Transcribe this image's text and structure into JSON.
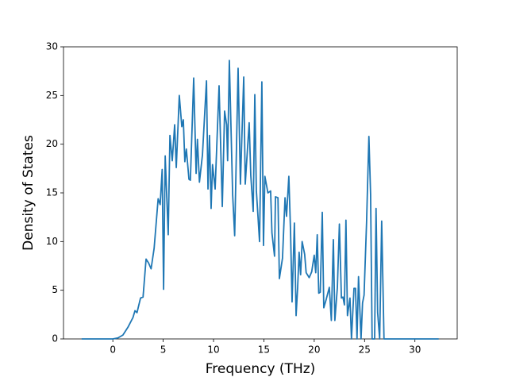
{
  "chart_data": {
    "type": "line",
    "x_label": "Frequency (THz)",
    "y_label": "Density of States",
    "color": "#1f77b4",
    "x": [
      -3.1,
      0,
      0.5,
      1,
      1.5,
      2,
      2.2,
      2.4,
      2.75,
      3,
      3.3,
      3.55,
      3.8,
      4.1,
      4.5,
      4.7,
      4.9,
      5.04,
      5.2,
      5.5,
      5.67,
      5.9,
      6.14,
      6.3,
      6.6,
      6.85,
      7.0,
      7.15,
      7.3,
      7.56,
      7.7,
      8.03,
      8.27,
      8.4,
      8.6,
      8.9,
      9.3,
      9.45,
      9.6,
      9.76,
      9.9,
      10.16,
      10.55,
      10.87,
      11.1,
      11.3,
      11.4,
      11.57,
      11.9,
      12.1,
      12.44,
      12.67,
      13.0,
      13.15,
      13.54,
      13.7,
      13.94,
      14.1,
      14.25,
      14.57,
      14.8,
      14.96,
      15.1,
      15.4,
      15.67,
      15.8,
      16.06,
      16.15,
      16.4,
      16.54,
      16.85,
      17.1,
      17.25,
      17.48,
      17.65,
      17.8,
      18.03,
      18.2,
      18.35,
      18.5,
      18.65,
      18.8,
      19.05,
      19.2,
      19.5,
      19.75,
      20.0,
      20.15,
      20.3,
      20.45,
      20.6,
      20.8,
      20.95,
      21.2,
      21.5,
      21.7,
      21.9,
      22.05,
      22.3,
      22.5,
      22.7,
      22.85,
      23.0,
      23.15,
      23.3,
      23.55,
      23.7,
      23.95,
      24.1,
      24.25,
      24.4,
      24.65,
      24.8,
      24.95,
      25.2,
      25.43,
      25.6,
      25.75,
      26.0,
      26.14,
      26.3,
      26.5,
      26.7,
      26.93,
      32.36
    ],
    "values": [
      0,
      0,
      0.1,
      0.4,
      1.2,
      2.2,
      2.9,
      2.7,
      4.2,
      4.3,
      8.2,
      7.8,
      7.2,
      9.3,
      14.4,
      13.8,
      17.4,
      5.1,
      18.8,
      10.7,
      20.9,
      18.3,
      22,
      17.6,
      25,
      21.8,
      22.5,
      18.2,
      19.5,
      16.4,
      16.3,
      26.8,
      17,
      20.5,
      16.1,
      18.9,
      26.5,
      15.4,
      20.9,
      13.4,
      17.9,
      15.4,
      26,
      13.6,
      23.4,
      22,
      18.3,
      28.6,
      14.8,
      10.6,
      27.8,
      15.9,
      26.9,
      15.9,
      22.2,
      16.8,
      13.1,
      25.1,
      15.3,
      10,
      26.4,
      9.6,
      16.7,
      15,
      15.2,
      10.9,
      8.5,
      14.6,
      14.5,
      6.2,
      8.3,
      14.5,
      12.6,
      16.7,
      11,
      3.8,
      11.9,
      2.4,
      5.2,
      8.9,
      6.6,
      10,
      8.7,
      6.8,
      6.3,
      6.9,
      8.6,
      6.8,
      10.7,
      4.7,
      4.8,
      13,
      3.2,
      4.1,
      5.3,
      1.9,
      10.2,
      1.9,
      5.3,
      11.8,
      4.2,
      4.3,
      3.5,
      12.2,
      2.4,
      4.2,
      0,
      5.2,
      5.2,
      0,
      6.4,
      0,
      3.7,
      4.5,
      12,
      20.8,
      14.8,
      0,
      0,
      13.4,
      2.7,
      0,
      12.1,
      0,
      0
    ],
    "xlim": [
      -4.9,
      34.2
    ],
    "ylim": [
      0,
      30
    ],
    "xticks": [
      0,
      5,
      10,
      15,
      20,
      25,
      30
    ],
    "yticks": [
      0,
      5,
      10,
      15,
      20,
      25,
      30
    ]
  }
}
